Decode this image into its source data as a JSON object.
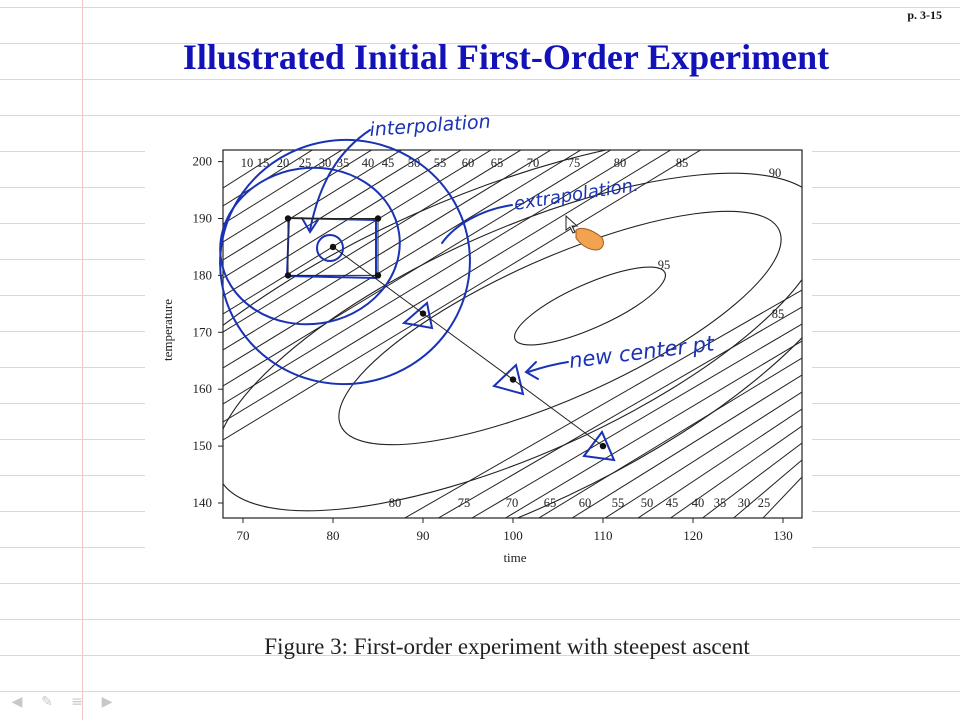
{
  "page_number": "p. 3-15",
  "slide_title": "Illustrated Initial First-Order Experiment",
  "caption": "Figure 3: First-order experiment with steepest ascent",
  "handwriting": {
    "interpolation": "interpolation",
    "extrapolation": "extrapolation.",
    "new_center": "new center pt"
  },
  "colors": {
    "title": "#1212b8",
    "ink": "#1a33b5",
    "contour": "#222222"
  },
  "nav_icons": [
    "arrow-left-icon",
    "pen-icon",
    "menu-icon",
    "arrow-right-icon"
  ],
  "chart_data": {
    "type": "contour",
    "xlabel": "time",
    "ylabel": "temperature",
    "xlim": [
      70,
      130
    ],
    "ylim": [
      138,
      203
    ],
    "xticks": [
      70,
      80,
      90,
      100,
      110,
      120,
      130
    ],
    "yticks": [
      140,
      150,
      160,
      170,
      180,
      190,
      200
    ],
    "contour_levels_top": [
      "10",
      "15",
      "20",
      "25",
      "30",
      "35",
      "40",
      "45",
      "50",
      "55",
      "60",
      "65",
      "70",
      "75",
      "80",
      "85",
      "90"
    ],
    "contour_labels_right": [
      "90",
      "95",
      "85"
    ],
    "contour_levels_bottom": [
      "80",
      "75",
      "70",
      "65",
      "60",
      "55",
      "50",
      "45",
      "40",
      "35",
      "30",
      "25"
    ],
    "design_points": [
      {
        "x": 75,
        "y": 190
      },
      {
        "x": 85,
        "y": 190
      },
      {
        "x": 75,
        "y": 180
      },
      {
        "x": 85,
        "y": 180
      },
      {
        "x": 80,
        "y": 185
      }
    ],
    "steepest_ascent_points": [
      {
        "x": 80,
        "y": 185
      },
      {
        "x": 90,
        "y": 173.3
      },
      {
        "x": 100,
        "y": 161.7
      },
      {
        "x": 110,
        "y": 150
      }
    ]
  }
}
